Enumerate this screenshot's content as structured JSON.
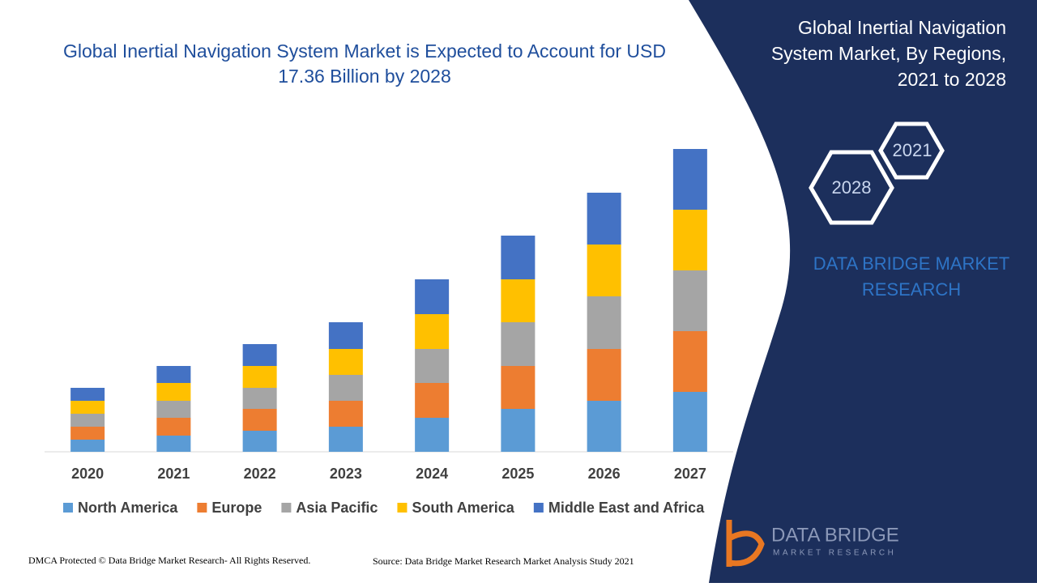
{
  "chart_data": {
    "type": "stacked_bar",
    "title": "Global Inertial Navigation System Market is Expected to Account for USD 17.36 Billion by 2028",
    "categories": [
      "2020",
      "2021",
      "2022",
      "2023",
      "2024",
      "2025",
      "2026",
      "2027"
    ],
    "series": [
      {
        "name": "North America",
        "color": "#5b9bd5",
        "values": [
          0.75,
          1.0,
          1.3,
          1.55,
          2.1,
          2.65,
          3.15,
          3.7
        ]
      },
      {
        "name": "Europe",
        "color": "#ed7d31",
        "values": [
          0.8,
          1.1,
          1.35,
          1.6,
          2.15,
          2.65,
          3.2,
          3.75
        ]
      },
      {
        "name": "Asia Pacific",
        "color": "#a5a5a5",
        "values": [
          0.8,
          1.05,
          1.3,
          1.6,
          2.1,
          2.7,
          3.25,
          3.75
        ]
      },
      {
        "name": "South America",
        "color": "#ffc000",
        "values": [
          0.8,
          1.1,
          1.35,
          1.6,
          2.15,
          2.65,
          3.2,
          3.75
        ]
      },
      {
        "name": "Middle East and Africa",
        "color": "#4472c4",
        "values": [
          0.8,
          1.05,
          1.35,
          1.65,
          2.15,
          2.7,
          3.2,
          3.75
        ]
      }
    ],
    "ylim": [
      0,
      20
    ]
  },
  "panel": {
    "title": "Global Inertial Navigation System Market, By Regions, 2021 to 2028",
    "hex_start": "2021",
    "hex_end": "2028",
    "brand": "DATA BRIDGE MARKET RESEARCH"
  },
  "footer": {
    "copyright": "DMCA Protected © Data Bridge Market Research- All Rights Reserved.",
    "source": "Source: Data Bridge Market Research Market Analysis Study 2021",
    "logo_name": "DATA BRIDGE",
    "logo_sub": "MARKET RESEARCH"
  }
}
